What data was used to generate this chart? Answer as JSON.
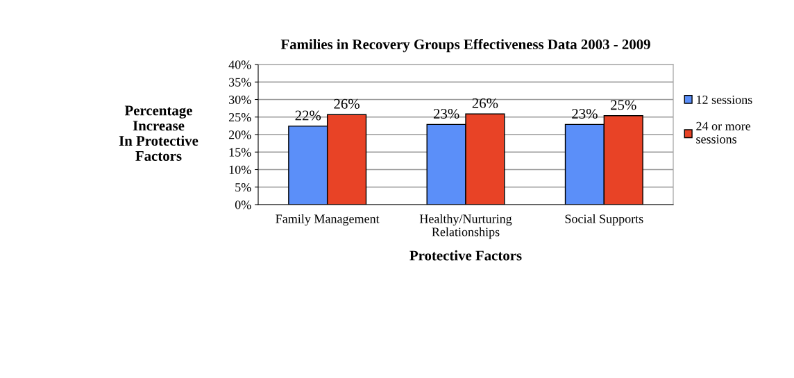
{
  "chart_data": {
    "type": "bar",
    "title": "Families in Recovery Groups Effectiveness Data 2003 - 2009",
    "xlabel": "Protective Factors",
    "ylabel": "Percentage\nIncrease\nIn Protective\nFactors",
    "categories": [
      "Family Management",
      "Healthy/Nurturing\nRelationships",
      "Social Supports"
    ],
    "series": [
      {
        "name": "12 sessions",
        "color": "#5b8ff9",
        "values": [
          22.4,
          22.9,
          22.9
        ],
        "value_labels": [
          "22%",
          "23%",
          "23%"
        ]
      },
      {
        "name": "24 or more\nsessions",
        "color": "#e84326",
        "values": [
          25.7,
          25.9,
          25.4
        ],
        "value_labels": [
          "26%",
          "26%",
          "25%"
        ]
      }
    ],
    "ylim": [
      0,
      40
    ],
    "yticks": [
      {
        "value": 0,
        "label": "0%"
      },
      {
        "value": 5,
        "label": "5%"
      },
      {
        "value": 10,
        "label": "10%"
      },
      {
        "value": 15,
        "label": "15%"
      },
      {
        "value": 20,
        "label": "20%"
      },
      {
        "value": 25,
        "label": "25%"
      },
      {
        "value": 30,
        "label": "30%"
      },
      {
        "value": 35,
        "label": "35%"
      },
      {
        "value": 40,
        "label": "40%"
      }
    ],
    "grid": "y",
    "legend": "right"
  }
}
